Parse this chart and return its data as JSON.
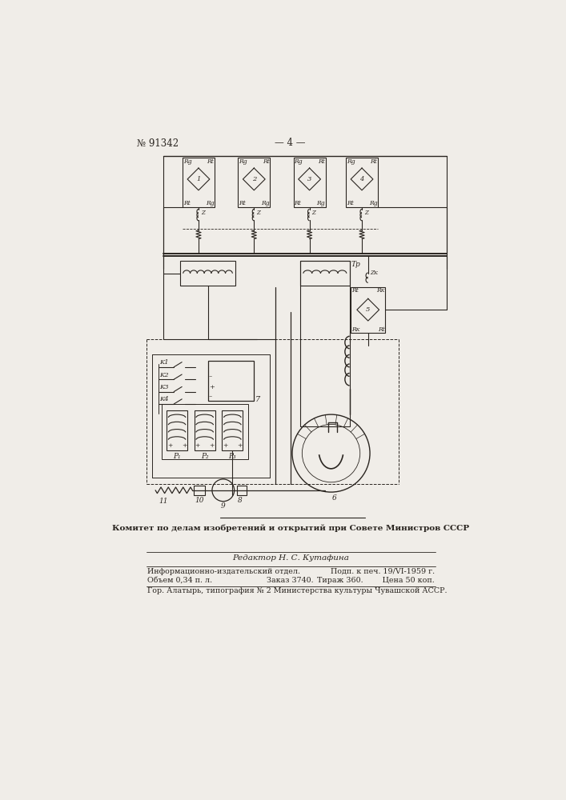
{
  "page_number": "— 4 —",
  "patent_number": "№ 91342",
  "background_color": "#f0ede8",
  "line_color": "#2a2520",
  "text_color": "#2a2520",
  "committee_text": "Комитет по делам изобретений и открытий при Совете Министров СССР",
  "editor_text": "Редактор Н. С. Кутафина",
  "info_line1_left": "Информационно-издательский отдел.",
  "info_line1_right": "Подп. к печ. 19/VI-1959 г.",
  "info_line2_left": "Объем 0,34 п. л.",
  "info_line2_mid": "Заказ 3740.",
  "info_line2_right": "Тираж 360.        Цена 50 коп.",
  "footer_text": "Гор. Алатырь, типография № 2 Министерства культуры Чувашской АССР."
}
